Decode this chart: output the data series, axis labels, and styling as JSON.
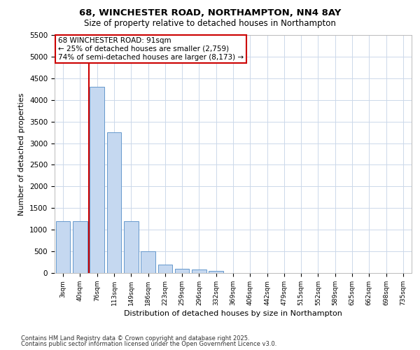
{
  "title1": "68, WINCHESTER ROAD, NORTHAMPTON, NN4 8AY",
  "title2": "Size of property relative to detached houses in Northampton",
  "xlabel": "Distribution of detached houses by size in Northampton",
  "ylabel": "Number of detached properties",
  "categories": [
    "3sqm",
    "40sqm",
    "76sqm",
    "113sqm",
    "149sqm",
    "186sqm",
    "223sqm",
    "259sqm",
    "296sqm",
    "332sqm",
    "369sqm",
    "406sqm",
    "442sqm",
    "479sqm",
    "515sqm",
    "552sqm",
    "589sqm",
    "625sqm",
    "662sqm",
    "698sqm",
    "735sqm"
  ],
  "values": [
    1200,
    1200,
    4300,
    3250,
    1200,
    500,
    200,
    100,
    75,
    50,
    0,
    0,
    0,
    0,
    0,
    0,
    0,
    0,
    0,
    0,
    0
  ],
  "bar_color": "#c5d8f0",
  "bar_edge_color": "#6699cc",
  "red_line_index": 2,
  "ylim": [
    0,
    5500
  ],
  "yticks": [
    0,
    500,
    1000,
    1500,
    2000,
    2500,
    3000,
    3500,
    4000,
    4500,
    5000,
    5500
  ],
  "annotation_text": "68 WINCHESTER ROAD: 91sqm\n← 25% of detached houses are smaller (2,759)\n74% of semi-detached houses are larger (8,173) →",
  "annotation_box_color": "#ffffff",
  "annotation_edge_color": "#cc0000",
  "footer1": "Contains HM Land Registry data © Crown copyright and database right 2025.",
  "footer2": "Contains public sector information licensed under the Open Government Licence v3.0.",
  "background_color": "#ffffff",
  "grid_color": "#ccd8ea"
}
